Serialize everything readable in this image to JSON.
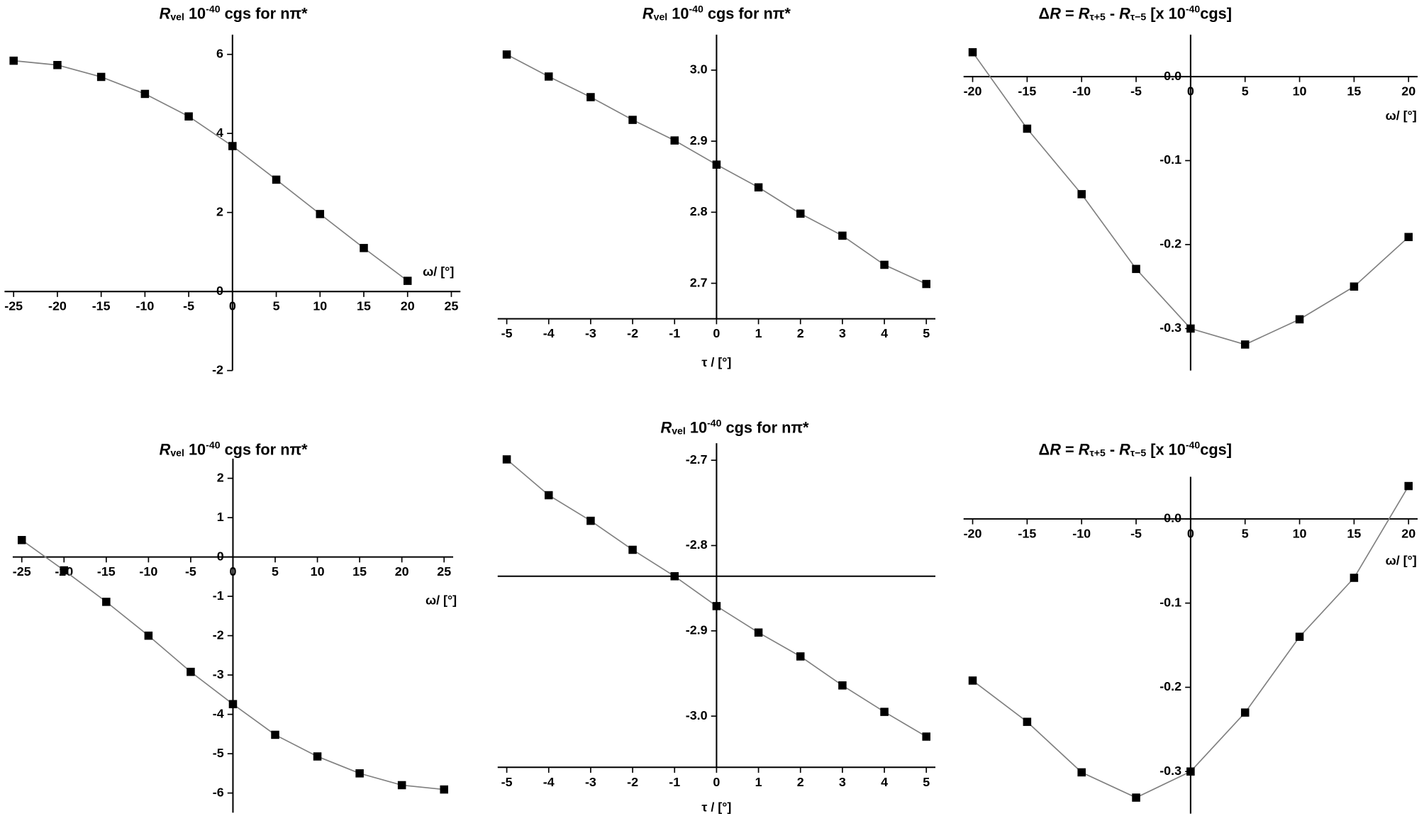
{
  "chart_data": [
    {
      "type": "line",
      "title": [
        {
          "text": "R",
          "style": "italic"
        },
        {
          "text": "vel",
          "style": "sub"
        },
        {
          "text": " 10"
        },
        {
          "text": "-40",
          "style": "sup"
        },
        {
          "text": " cgs for nπ*"
        }
      ],
      "xlabel": "ω/ [°]",
      "x": [
        -25,
        -20,
        -15,
        -10,
        -5,
        0,
        5,
        10,
        15,
        20
      ],
      "values": [
        5.84,
        5.73,
        5.43,
        5.0,
        4.43,
        3.68,
        2.83,
        1.96,
        1.1,
        0.27
      ],
      "xlim": [
        -25,
        25
      ],
      "xticks": [
        -25,
        -20,
        -15,
        -10,
        -5,
        0,
        5,
        10,
        15,
        20,
        25
      ],
      "ylim": [
        -2,
        6.5
      ],
      "yticks": [
        -2,
        0,
        2,
        4,
        6
      ],
      "color": "#000000",
      "line_color": "#808080"
    },
    {
      "type": "line",
      "title": [
        {
          "text": "R",
          "style": "italic"
        },
        {
          "text": "vel",
          "style": "sub"
        },
        {
          "text": " 10"
        },
        {
          "text": "-40",
          "style": "sup"
        },
        {
          "text": " cgs for nπ*"
        }
      ],
      "xlabel": "τ / [°]",
      "x": [
        -5,
        -4,
        -3,
        -2,
        -1,
        0,
        1,
        2,
        3,
        4,
        5
      ],
      "values": [
        3.022,
        2.991,
        2.962,
        2.93,
        2.901,
        2.867,
        2.835,
        2.798,
        2.767,
        2.726,
        2.699
      ],
      "xlim": [
        -5,
        5
      ],
      "xticks": [
        -5,
        -4,
        -3,
        -2,
        -1,
        0,
        1,
        2,
        3,
        4,
        5
      ],
      "ylim": [
        2.65,
        3.05
      ],
      "yticks": [
        2.7,
        2.8,
        2.9,
        {
          "value": 3,
          "label": "3.0"
        }
      ],
      "color": "#000000",
      "line_color": "#808080"
    },
    {
      "type": "line",
      "title": [
        {
          "text": "Δ"
        },
        {
          "text": "R",
          "style": "italic"
        },
        {
          "text": " = "
        },
        {
          "text": "R",
          "style": "italic"
        },
        {
          "text": "τ+5",
          "style": "sub"
        },
        {
          "text": " - "
        },
        {
          "text": "R",
          "style": "italic"
        },
        {
          "text": "τ−5",
          "style": "sub"
        },
        {
          "text": " [x 10"
        },
        {
          "text": "-40",
          "style": "sup"
        },
        {
          "text": "cgs]"
        }
      ],
      "xlabel": "ω/ [°]",
      "x": [
        -20,
        -15,
        -10,
        -5,
        0,
        5,
        10,
        15,
        20
      ],
      "values": [
        0.029,
        -0.062,
        -0.14,
        -0.229,
        -0.3,
        -0.319,
        -0.289,
        -0.25,
        -0.191
      ],
      "xlim": [
        -20,
        20
      ],
      "xticks": [
        -20,
        -15,
        -10,
        -5,
        0,
        5,
        10,
        15,
        20
      ],
      "ylim": [
        -0.35,
        0.05
      ],
      "yticks": [
        -0.3,
        -0.2,
        -0.1,
        {
          "value": 0,
          "label": "0.0"
        }
      ],
      "color": "#000000",
      "line_color": "#808080"
    },
    {
      "type": "line",
      "title": [
        {
          "text": "R",
          "style": "italic"
        },
        {
          "text": "vel",
          "style": "sub"
        },
        {
          "text": " 10"
        },
        {
          "text": "-40",
          "style": "sup"
        },
        {
          "text": " cgs for nπ*"
        }
      ],
      "xlabel": "ω/ [°]",
      "x": [
        -25,
        -20,
        -15,
        -10,
        -5,
        0,
        5,
        10,
        15,
        20,
        25
      ],
      "values": [
        0.43,
        -0.34,
        -1.14,
        -2.0,
        -2.92,
        -3.74,
        -4.52,
        -5.07,
        -5.5,
        -5.8,
        -5.91
      ],
      "xlim": [
        -25,
        25
      ],
      "xticks": [
        -25,
        -20,
        -15,
        -10,
        -5,
        0,
        5,
        10,
        15,
        20,
        25
      ],
      "ylim": [
        -6.5,
        2.5
      ],
      "yticks": [
        -6,
        -5,
        -4,
        -3,
        -2,
        -1,
        0,
        1,
        2
      ],
      "color": "#000000",
      "line_color": "#808080"
    },
    {
      "type": "line",
      "title": [
        {
          "text": "R",
          "style": "italic"
        },
        {
          "text": "vel",
          "style": "sub"
        },
        {
          "text": " 10"
        },
        {
          "text": "-40",
          "style": "sup"
        },
        {
          "text": " cgs for nπ*"
        }
      ],
      "xlabel": "τ / [°]",
      "x": [
        -5,
        -4,
        -3,
        -2,
        -1,
        0,
        1,
        2,
        3,
        4,
        5
      ],
      "values": [
        -2.699,
        -2.741,
        -2.771,
        -2.805,
        -2.836,
        -2.871,
        -2.902,
        -2.93,
        -2.964,
        -2.995,
        -3.024
      ],
      "xlim": [
        -5,
        5
      ],
      "xticks": [
        -5,
        -4,
        -3,
        -2,
        -1,
        0,
        1,
        2,
        3,
        4,
        5
      ],
      "ylim": [
        -3.06,
        -2.68
      ],
      "yticks": [
        -2.7,
        -2.8,
        -2.9,
        {
          "value": -3,
          "label": "-3.0"
        }
      ],
      "hline": -2.836,
      "color": "#000000",
      "line_color": "#808080"
    },
    {
      "type": "line",
      "title": [
        {
          "text": "Δ"
        },
        {
          "text": "R",
          "style": "italic"
        },
        {
          "text": " = "
        },
        {
          "text": "R",
          "style": "italic"
        },
        {
          "text": "τ+5",
          "style": "sub"
        },
        {
          "text": " - "
        },
        {
          "text": "R",
          "style": "italic"
        },
        {
          "text": "τ−5",
          "style": "sub"
        },
        {
          "text": " [x 10"
        },
        {
          "text": "-40",
          "style": "sup"
        },
        {
          "text": "cgs]"
        }
      ],
      "xlabel": "ω/ [°]",
      "x": [
        -20,
        -15,
        -10,
        -5,
        0,
        5,
        10,
        15,
        20
      ],
      "values": [
        -0.192,
        -0.241,
        -0.301,
        -0.331,
        -0.3,
        -0.23,
        -0.14,
        -0.07,
        0.039
      ],
      "xlim": [
        -20,
        20
      ],
      "xticks": [
        -20,
        -15,
        -10,
        -5,
        0,
        5,
        10,
        15,
        20
      ],
      "ylim": [
        -0.35,
        0.05
      ],
      "yticks": [
        -0.3,
        -0.2,
        -0.1,
        {
          "value": 0,
          "label": "0.0"
        }
      ],
      "color": "#000000",
      "line_color": "#808080"
    }
  ]
}
